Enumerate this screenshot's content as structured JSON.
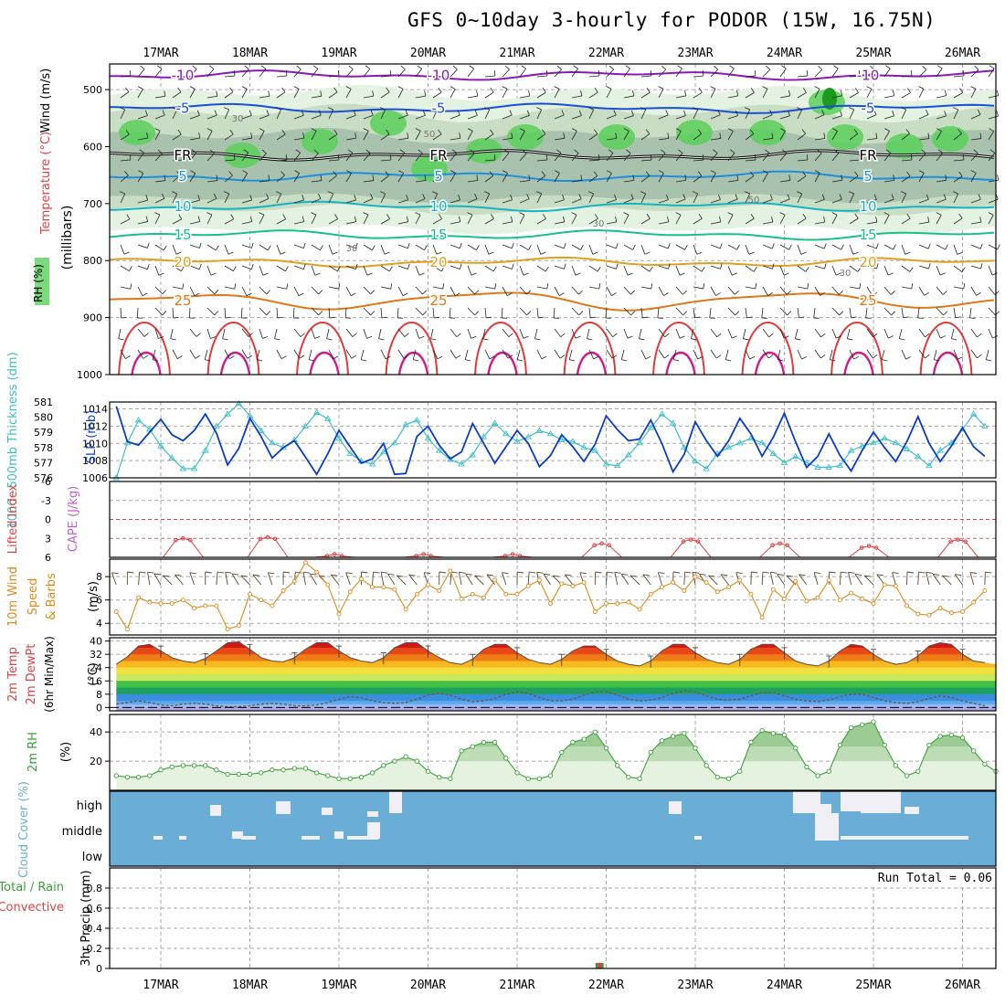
{
  "title": "GFS 0~10day 3-hourly for PODOR (15W, 16.75N)",
  "dates": [
    "17MAR",
    "18MAR",
    "19MAR",
    "20MAR",
    "21MAR",
    "22MAR",
    "23MAR",
    "24MAR",
    "25MAR",
    "26MAR"
  ],
  "colors": {
    "grid": "#a8a8a8",
    "rh_light": "#e4f2e1",
    "rh_mid": "#c8ddc4",
    "rh_dark": "#a9c2ad",
    "rh_green": "#5bd05b",
    "slp": "#0b3cc8",
    "thickness": "#3ebfc6",
    "li": "#e04040",
    "wind10": "#e08a1a",
    "rh2m": "#3aa03a",
    "cloud": "#6aadd6",
    "precip_total": "#3aa03a",
    "precip_conv": "#e04040"
  },
  "chart_data": [
    {
      "type": "contour",
      "panel": "upper-air",
      "ylabel": "(millibars)",
      "axis_titles": {
        "temperature": "Temperature (°C)",
        "wind": "Wind (m/s)",
        "rh": "RH (%)"
      },
      "y_ticks": [
        500,
        600,
        700,
        800,
        900,
        1000
      ],
      "ylim": [
        1000,
        455
      ],
      "isotherms": [
        {
          "label": "-10",
          "level": 475,
          "color": "#8a1ab8"
        },
        {
          "label": "-5",
          "level": 533,
          "color": "#1b4fd8"
        },
        {
          "label": "FR",
          "level": 615,
          "color": "#000000"
        },
        {
          "label": "5",
          "level": 652,
          "color": "#1e8fe0"
        },
        {
          "label": "10",
          "level": 705,
          "color": "#16b4c0"
        },
        {
          "label": "15",
          "level": 755,
          "color": "#18c08c"
        },
        {
          "label": "20",
          "level": 803,
          "color": "#e0a020"
        },
        {
          "label": "25",
          "level": 870,
          "color": "#e07818"
        }
      ],
      "rh_labels": [
        "30",
        "50"
      ]
    },
    {
      "type": "line",
      "panel": "slp-thickness",
      "y_left_label": "1000~500mb Thickness (dm)",
      "y_right_label": "SLP (mb)",
      "y_left_ticks": [
        576,
        577,
        578,
        579,
        580,
        581
      ],
      "y_right_ticks": [
        1006,
        1008,
        1010,
        1012,
        1014
      ],
      "ylim_slp": [
        1006,
        1014.8
      ],
      "ylim_thick": [
        576,
        581
      ],
      "slp": [
        1014.3,
        1010.2,
        1009.8,
        1011.3,
        1012.8,
        1011.0,
        1010.3,
        1011.5,
        1013.4,
        1011.2,
        1007.5,
        1009.4,
        1012.9,
        1010.8,
        1008.3,
        1009.5,
        1010.3,
        1008.4,
        1006.4,
        1008.8,
        1011.5,
        1009.6,
        1007.7,
        1008.2,
        1010.0,
        1006.4,
        1006.5,
        1010.8,
        1012.0,
        1009.8,
        1008.2,
        1009.0,
        1012.3,
        1010.0,
        1007.7,
        1009.6,
        1011.5,
        1010.0,
        1007.3,
        1008.6,
        1011.0,
        1009.6,
        1007.9,
        1009.9,
        1013.2,
        1011.6,
        1010.3,
        1010.5,
        1012.7,
        1010.0,
        1006.7,
        1008.7,
        1012.5,
        1010.3,
        1008.5,
        1010.3,
        1012.9,
        1011.1,
        1008.5,
        1010.7,
        1013.5,
        1010.2,
        1007.2,
        1008.5,
        1011.1,
        1008.6,
        1006.8,
        1009.2,
        1011.3,
        1009.5,
        1007.9,
        1010.2,
        1013.1,
        1010.0,
        1007.9,
        1009.7,
        1011.8,
        1009.6,
        1008.5,
        1011.1,
        1013.0,
        1012.2,
        1009.9
      ],
      "thickness": [
        576.0,
        578.3,
        579.8,
        579.2,
        578.1,
        577.3,
        576.6,
        576.6,
        577.8,
        579.4,
        580.2,
        580.9,
        580.1,
        579.1,
        578.3,
        578.0,
        578.5,
        579.4,
        580.3,
        579.9,
        578.6,
        577.6,
        577.1,
        576.9,
        577.7,
        578.3,
        579.5,
        579.8,
        578.6,
        577.8,
        577.2,
        576.9,
        577.5,
        578.7,
        579.6,
        578.9,
        578.4,
        578.7,
        579.1,
        578.9,
        578.5,
        578.4,
        578.0,
        577.8,
        576.9,
        576.8,
        577.5,
        578.3,
        579.3,
        580.2,
        579.6,
        578.0,
        577.1,
        576.6,
        577.6,
        578.0,
        578.3,
        578.6,
        578.3,
        577.6,
        577.0,
        577.4,
        577.0,
        576.7,
        576.7,
        576.8,
        577.8,
        578.1,
        578.3,
        578.6,
        578.3,
        577.9,
        577.4,
        576.8,
        577.8,
        578.3,
        579.2,
        580.2,
        579.4,
        579.7,
        578.9,
        578.7,
        578.3,
        578.0
      ]
    },
    {
      "type": "line",
      "panel": "lifted-index",
      "y_left_label": "Lifted Index",
      "y_right_label": "CAPE (J/kg)",
      "y_ticks": [
        -6,
        -3,
        0,
        3,
        6
      ],
      "ylim": [
        -6,
        6
      ],
      "events": [
        {
          "day": 0.25,
          "peak": 3.0
        },
        {
          "day": 1.2,
          "peak": 2.8
        },
        {
          "day": 1.95,
          "peak": 5.5
        },
        {
          "day": 2.95,
          "peak": 5.5
        },
        {
          "day": 3.95,
          "peak": 5.5
        },
        {
          "day": 4.95,
          "peak": 3.8
        },
        {
          "day": 5.95,
          "peak": 3.2
        },
        {
          "day": 6.95,
          "peak": 3.8
        },
        {
          "day": 7.95,
          "peak": 4.2
        },
        {
          "day": 8.95,
          "peak": 3.2
        }
      ]
    },
    {
      "type": "line",
      "panel": "wind-10m",
      "y_label": "10m Wind Speed & Barbs (m/s)",
      "y_ticks": [
        4,
        6,
        8
      ],
      "ylim": [
        3,
        9.5
      ],
      "speed": [
        5.0,
        3.5,
        6.2,
        5.8,
        5.7,
        5.7,
        6.0,
        5.3,
        5.5,
        5.5,
        3.5,
        3.8,
        6.5,
        6.0,
        5.5,
        6.8,
        7.6,
        9.2,
        8.4,
        7.3,
        4.8,
        6.7,
        7.8,
        7.1,
        7.1,
        6.9,
        5.2,
        6.5,
        7.3,
        6.8,
        8.5,
        6.1,
        6.5,
        6.2,
        7.7,
        6.5,
        6.5,
        7.2,
        7.7,
        5.7,
        7.4,
        7.2,
        7.5,
        5.0,
        5.7,
        5.7,
        5.8,
        5.2,
        6.5,
        7.1,
        7.5,
        6.8,
        8.0,
        7.5,
        6.7,
        7.1,
        7.7,
        6.5,
        4.5,
        6.9,
        6.1,
        7.6,
        5.9,
        6.2,
        7.7,
        6.0,
        6.6,
        6.1,
        5.7,
        7.3,
        7.2,
        5.5,
        4.8,
        4.7,
        5.3,
        4.9,
        5.0,
        5.8,
        6.8,
        7.2,
        8.0,
        7.7,
        6.3
      ]
    },
    {
      "type": "area",
      "panel": "temp-dewpoint-2m",
      "y_label": "2m Temp 2m DewPt (6hr Min/Max) (°C)",
      "y_ticks": [
        0,
        8,
        16,
        24,
        32,
        40
      ],
      "ylim": [
        -2,
        42
      ],
      "temp": [
        26.0,
        30.5,
        37.0,
        38.0,
        34.0,
        30.0,
        28.0,
        27.0,
        29.5,
        34.0,
        39.0,
        39.5,
        35.0,
        30.0,
        28.0,
        27.5,
        30.0,
        35.0,
        39.0,
        39.0,
        34.0,
        30.0,
        28.0,
        27.0,
        30.0,
        36.0,
        39.0,
        39.0,
        34.0,
        30.0,
        27.0,
        26.0,
        29.0,
        35.0,
        38.0,
        38.0,
        33.0,
        29.0,
        27.0,
        26.0,
        29.0,
        34.0,
        37.0,
        37.0,
        32.0,
        28.0,
        26.0,
        25.0,
        28.0,
        34.0,
        38.0,
        38.0,
        33.0,
        29.0,
        27.0,
        26.0,
        29.0,
        35.0,
        38.0,
        38.0,
        33.0,
        28.0,
        26.0,
        25.0,
        28.0,
        34.0,
        38.0,
        37.0,
        32.0,
        28.0,
        26.0,
        27.0,
        31.0,
        37.0,
        39.0,
        38.0,
        32.0,
        28.0,
        27.0,
        26.0,
        26.0
      ],
      "dewpoint": [
        2.0,
        3.0,
        4.0,
        3.0,
        1.5,
        1.0,
        2.0,
        2.5,
        2.0,
        1.0,
        0.5,
        0.5,
        1.0,
        2.0,
        2.5,
        2.0,
        1.0,
        1.0,
        1.5,
        3.0,
        5.0,
        6.5,
        6.0,
        4.0,
        3.0,
        2.5,
        3.0,
        5.0,
        7.5,
        8.5,
        7.5,
        5.0,
        3.5,
        4.0,
        5.5,
        8.0,
        9.5,
        8.5,
        6.0,
        4.0,
        4.0,
        5.0,
        7.5,
        9.5,
        9.5,
        7.5,
        5.0,
        4.0,
        4.5,
        6.0,
        8.5,
        10.0,
        9.5,
        7.0,
        5.0,
        4.5,
        5.0,
        7.0,
        9.0,
        9.0,
        7.0,
        5.0,
        4.0,
        3.5,
        4.5,
        6.5,
        8.0,
        8.0,
        6.0,
        4.0,
        3.0,
        2.5,
        3.5,
        5.5,
        7.0,
        6.0,
        4.0,
        2.5,
        1.0,
        0.0
      ]
    },
    {
      "type": "area",
      "panel": "rh-2m",
      "y_label": "2m RH (%)",
      "y_ticks": [
        20,
        40
      ],
      "ylim": [
        0,
        52
      ],
      "values": [
        10,
        9,
        9,
        10,
        14,
        16,
        17,
        17,
        17,
        14,
        11,
        11,
        11,
        12,
        14,
        14,
        15,
        15,
        12,
        10,
        8,
        8,
        9,
        12,
        17,
        20,
        23,
        20,
        13,
        9,
        8,
        27,
        30,
        33,
        33,
        22,
        12,
        8,
        8,
        10,
        26,
        33,
        35,
        40,
        29,
        17,
        9,
        8,
        26,
        34,
        37,
        39,
        29,
        17,
        9,
        8,
        13,
        33,
        41,
        39,
        38,
        29,
        16,
        10,
        13,
        31,
        43,
        45,
        47,
        31,
        17,
        10,
        13,
        31,
        37,
        38,
        36,
        27,
        18,
        13,
        13,
        17,
        22,
        17,
        15
      ]
    },
    {
      "type": "heatmap",
      "panel": "cloud-cover",
      "y_label": "Cloud Cover (%)",
      "levels": [
        "high",
        "middle",
        "low"
      ]
    },
    {
      "type": "bar",
      "panel": "precip-3hr",
      "y_label": "3hr Precip (mm)",
      "legend": [
        "Total / Rain",
        "Convective"
      ],
      "y_ticks": [
        0,
        0.2,
        0.4,
        0.6,
        0.8
      ],
      "ylim": [
        0,
        1.0
      ],
      "run_total_text": "Run Total = 0.06",
      "bars": [
        {
          "day": 4.92,
          "total": 0.06,
          "convective": 0.06
        }
      ]
    }
  ]
}
